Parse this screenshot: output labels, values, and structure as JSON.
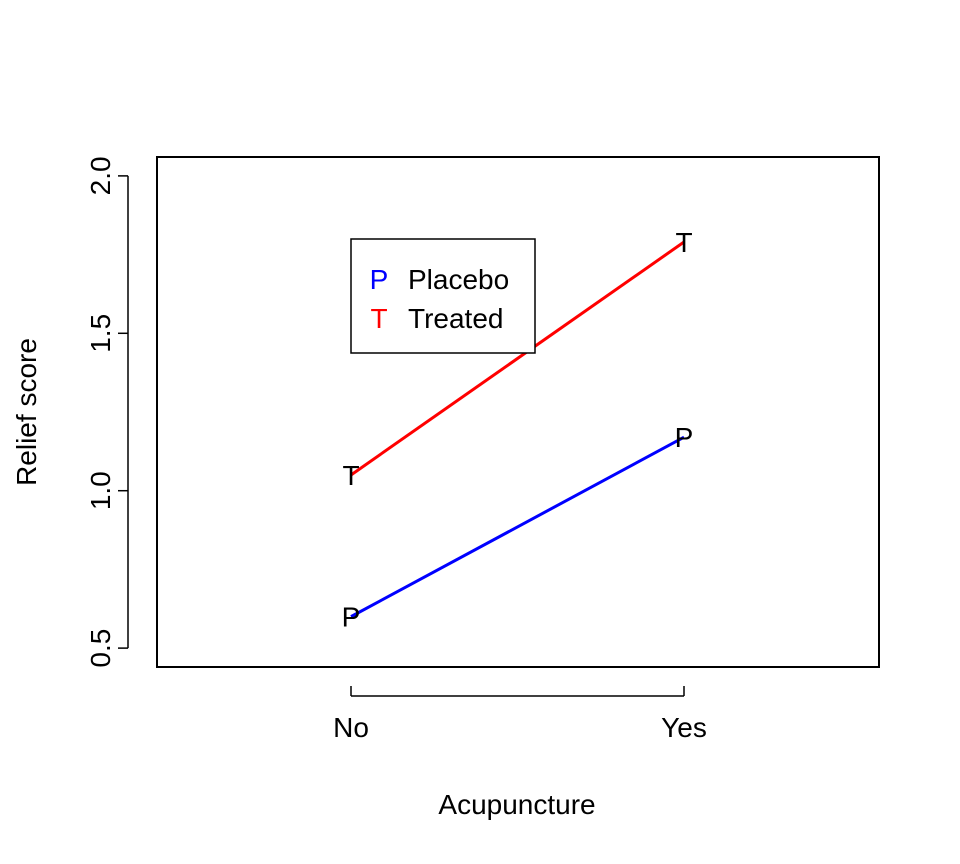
{
  "chart_data": {
    "type": "line",
    "title": "",
    "xlabel": "Acupuncture",
    "ylabel": "Relief score",
    "categories": [
      "No",
      "Yes"
    ],
    "ylim": [
      0.44,
      2.06
    ],
    "yticks": [
      "0.5",
      "1.0",
      "1.5",
      "2.0"
    ],
    "grid": false,
    "legend_position": "top-left",
    "series": [
      {
        "name": "Placebo",
        "marker": "P",
        "color": "#0000ff",
        "values": [
          0.6,
          1.17
        ]
      },
      {
        "name": "Treated",
        "marker": "T",
        "color": "#ff0000",
        "values": [
          1.05,
          1.79
        ]
      }
    ]
  }
}
